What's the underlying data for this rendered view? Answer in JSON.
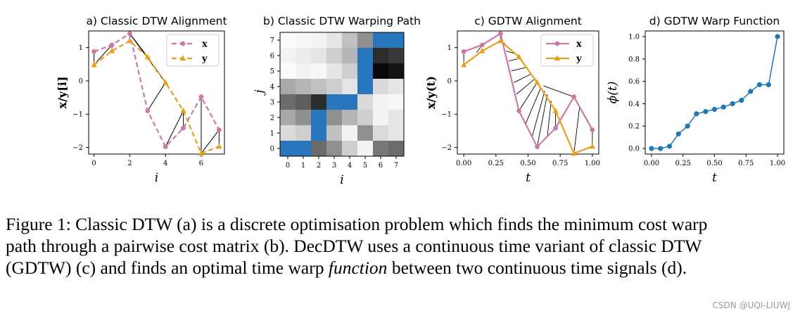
{
  "colors": {
    "x_series": "#cc79a7",
    "y_series": "#e6a11c",
    "warp": "#1f77b4",
    "path_cell": "#2a76bd",
    "link": "#000000"
  },
  "chart_data": [
    {
      "type": "line",
      "title": "a) Classic DTW Alignment",
      "xlabel": "i",
      "ylabel": "x/y[i]",
      "xticks": [
        "0",
        "2",
        "4",
        "6"
      ],
      "yticks": [
        "1",
        "0",
        "−1",
        "−2"
      ],
      "xlim": [
        -0.3,
        7.3
      ],
      "ylim": [
        -2.2,
        1.5
      ],
      "legend_placement": "top-right",
      "series": [
        {
          "name": "x",
          "x": [
            0,
            1,
            2,
            3,
            4,
            5,
            6,
            7
          ],
          "y": [
            0.88,
            1.08,
            1.42,
            -0.9,
            -1.98,
            -1.42,
            -0.48,
            -1.47
          ]
        },
        {
          "name": "y",
          "x": [
            0,
            1,
            2,
            3,
            4,
            5,
            6,
            7
          ],
          "y": [
            0.48,
            0.9,
            1.2,
            0.72,
            -0.05,
            -0.9,
            -2.18,
            -1.97
          ]
        }
      ],
      "alignment_pairs": [
        [
          0,
          0
        ],
        [
          1,
          0
        ],
        [
          1,
          1
        ],
        [
          2,
          2
        ],
        [
          2,
          3
        ],
        [
          2,
          4
        ],
        [
          3,
          4
        ],
        [
          4,
          5
        ],
        [
          5,
          5
        ],
        [
          6,
          6
        ],
        [
          7,
          6
        ],
        [
          7,
          7
        ]
      ]
    },
    {
      "type": "heatmap",
      "title": "b) Classic DTW Warping Path",
      "xlabel": "i",
      "ylabel": "j",
      "xticks": [
        "0",
        "1",
        "2",
        "3",
        "4",
        "5",
        "6",
        "7"
      ],
      "yticks": [
        "7",
        "6",
        "5",
        "4",
        "3",
        "2",
        "1",
        "0"
      ],
      "values": [
        [
          0.02,
          0.03,
          0.05,
          0.1,
          0.25,
          0.45,
          0.95,
          0.9
        ],
        [
          0.05,
          0.08,
          0.1,
          0.2,
          0.3,
          0.55,
          0.85,
          0.8
        ],
        [
          0.02,
          0.05,
          0.03,
          0.1,
          0.2,
          0.6,
          1.0,
          0.95
        ],
        [
          0.35,
          0.3,
          0.25,
          0.2,
          0.1,
          0.25,
          0.15,
          0.1
        ],
        [
          0.6,
          0.65,
          0.85,
          0.7,
          0.55,
          0.15,
          0.05,
          0.03
        ],
        [
          0.35,
          0.45,
          0.6,
          0.45,
          0.3,
          0.2,
          0.05,
          0.1
        ],
        [
          0.15,
          0.2,
          0.3,
          0.25,
          0.05,
          0.45,
          0.15,
          0.1
        ],
        [
          0.4,
          0.45,
          0.6,
          0.45,
          0.2,
          0.05,
          0.55,
          0.6
        ]
      ],
      "warping_path": [
        [
          0,
          0
        ],
        [
          1,
          0
        ],
        [
          2,
          1
        ],
        [
          2,
          2
        ],
        [
          3,
          3
        ],
        [
          4,
          3
        ],
        [
          5,
          4
        ],
        [
          5,
          5
        ],
        [
          5,
          6
        ],
        [
          6,
          7
        ],
        [
          7,
          7
        ]
      ]
    },
    {
      "type": "line",
      "title": "c) GDTW Alignment",
      "xlabel": "t",
      "ylabel": "x/y(t)",
      "xticks": [
        "0.00",
        "0.25",
        "0.50",
        "0.75",
        "1.00"
      ],
      "yticks": [
        "1",
        "0",
        "−1",
        "−2"
      ],
      "xlim": [
        -0.05,
        1.05
      ],
      "ylim": [
        -2.2,
        1.5
      ],
      "legend_placement": "top-right",
      "series": [
        {
          "name": "x",
          "x": [
            0,
            0.143,
            0.286,
            0.429,
            0.571,
            0.714,
            0.857,
            1.0
          ],
          "y": [
            0.88,
            1.08,
            1.42,
            -0.9,
            -1.98,
            -1.42,
            -0.48,
            -1.47
          ]
        },
        {
          "name": "y",
          "x": [
            0,
            0.143,
            0.286,
            0.429,
            0.571,
            0.714,
            0.857,
            1.0
          ],
          "y": [
            0.48,
            0.9,
            1.2,
            0.72,
            -0.05,
            -0.9,
            -2.18,
            -1.97
          ]
        }
      ],
      "alignment_links": [
        [
          0,
          0.88,
          0,
          0.48
        ],
        [
          0.143,
          1.08,
          0.1,
          0.85
        ],
        [
          0.286,
          1.42,
          0.286,
          1.2
        ],
        [
          0.31,
          1.15,
          0.36,
          0.95
        ],
        [
          0.33,
          0.9,
          0.41,
          0.8
        ],
        [
          0.35,
          0.6,
          0.44,
          0.68
        ],
        [
          0.37,
          0.3,
          0.48,
          0.4
        ],
        [
          0.39,
          -0.05,
          0.52,
          0.2
        ],
        [
          0.41,
          -0.4,
          0.55,
          0.05
        ],
        [
          0.429,
          -0.9,
          0.571,
          -0.05
        ],
        [
          0.48,
          -1.3,
          0.6,
          -0.2
        ],
        [
          0.53,
          -1.7,
          0.63,
          -0.3
        ],
        [
          0.571,
          -1.98,
          0.65,
          -0.4
        ],
        [
          0.65,
          -1.67,
          0.68,
          -0.6
        ],
        [
          0.714,
          -1.42,
          0.714,
          -0.9
        ],
        [
          0.857,
          -0.48,
          0.62,
          -0.15
        ],
        [
          0.9,
          -0.8,
          0.857,
          -2.18
        ],
        [
          1.0,
          -1.47,
          1.0,
          -1.97
        ]
      ]
    },
    {
      "type": "line",
      "title": "d) GDTW Warp Function",
      "xlabel": "t",
      "ylabel": "ϕ(t)",
      "xticks": [
        "0.00",
        "0.25",
        "0.50",
        "0.75",
        "1.00"
      ],
      "yticks": [
        "1.0",
        "0.8",
        "0.6",
        "0.4",
        "0.2",
        "0.0"
      ],
      "xlim": [
        -0.05,
        1.05
      ],
      "ylim": [
        -0.05,
        1.05
      ],
      "series": [
        {
          "name": "",
          "x": [
            0,
            0.071,
            0.143,
            0.214,
            0.286,
            0.357,
            0.429,
            0.5,
            0.571,
            0.643,
            0.714,
            0.786,
            0.857,
            0.929,
            1.0
          ],
          "y": [
            0.0,
            0.0,
            0.02,
            0.13,
            0.2,
            0.31,
            0.33,
            0.35,
            0.37,
            0.4,
            0.43,
            0.51,
            0.57,
            0.57,
            1.0
          ]
        }
      ]
    }
  ],
  "caption": {
    "line1": "Figure 1: Classic DTW (a) is a discrete optimisation problem which finds the minimum cost warp",
    "line2": "path through a pairwise cost matrix (b). DecDTW uses a continuous time variant of classic DTW",
    "line3_pre": "(GDTW) (c) and finds an optimal time warp ",
    "line3_em": "function",
    "line3_post": " between two continuous time signals (d)."
  },
  "watermark": "CSDN @UQI-LIUWJ"
}
